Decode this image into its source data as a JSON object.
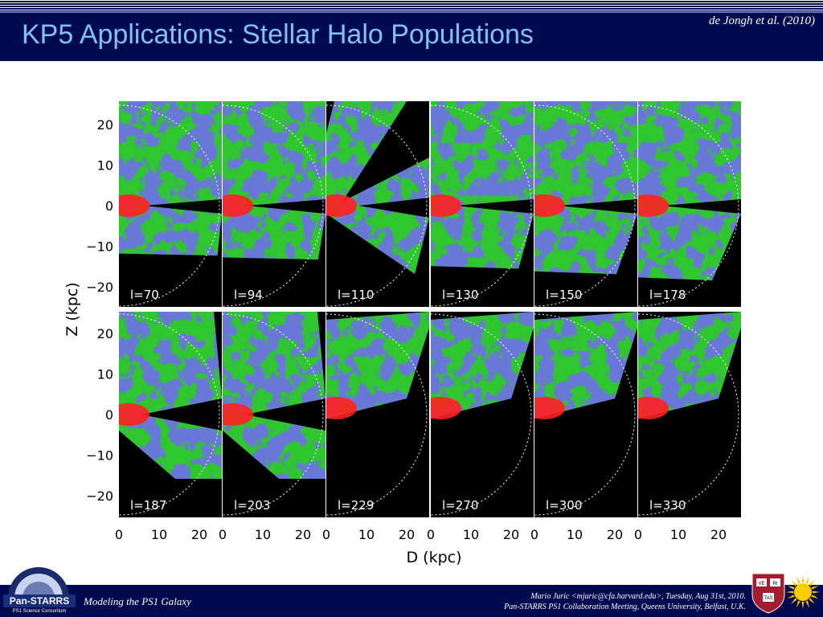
{
  "header": {
    "title": "KP5 Applications: Stellar Halo Populations",
    "citation": "de Jongh et al. (2010)"
  },
  "figure": {
    "y_axis_label": "Z (kpc)",
    "x_axis_label": "D (kpc)",
    "y_ticks_top": [
      "20",
      "10",
      "0",
      "−10",
      "−20"
    ],
    "y_ticks_bottom": [
      "20",
      "10",
      "0",
      "−10",
      "−20"
    ],
    "x_ticks": [
      "0",
      "10",
      "20",
      "0",
      "10",
      "20",
      "0",
      "10",
      "20",
      "0",
      "10",
      "20",
      "0",
      "10",
      "20",
      "0",
      "10",
      "20"
    ],
    "panels_top": [
      {
        "label": "l=70"
      },
      {
        "label": "l=94"
      },
      {
        "label": "l=110"
      },
      {
        "label": "l=130"
      },
      {
        "label": "l=150"
      },
      {
        "label": "l=178"
      }
    ],
    "panels_bottom": [
      {
        "label": "l=187"
      },
      {
        "label": "l=203"
      },
      {
        "label": "l=229"
      },
      {
        "label": "l=270"
      },
      {
        "label": "l=300"
      },
      {
        "label": "l=330"
      }
    ],
    "colors": {
      "green": "#2fc62f",
      "blue": "#2a2ad6",
      "red": "#ff2020",
      "background": "#000000"
    }
  },
  "footer": {
    "left": "Modeling the PS1 Galaxy",
    "right_line1": "Mario Juric <mjuric@cfa.harvard.edu>, Tuesday, Aug 31st, 2010.",
    "right_line2": "Pan-STARRS PS1 Collaboration Meeting, Queens University, Belfast, U.K.",
    "logo_text1": "Pan-STARRS",
    "logo_text2": "PS1 Science Consortium",
    "shield_text": [
      "VE",
      "RI",
      "TAS"
    ]
  }
}
